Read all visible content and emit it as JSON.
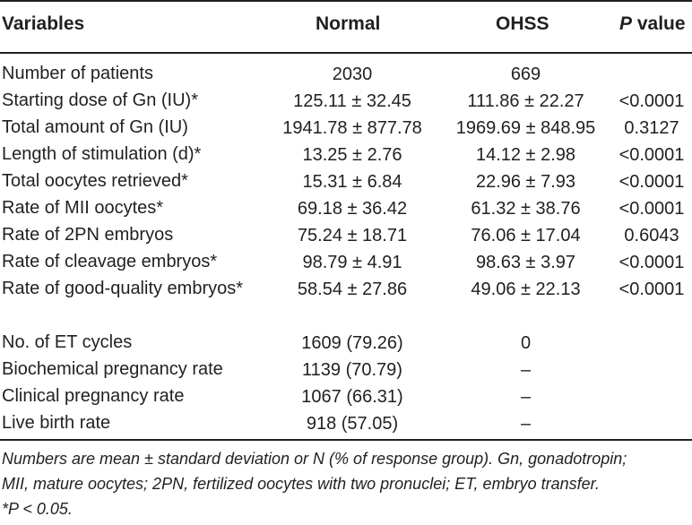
{
  "header": {
    "variables": "Variables",
    "normal": "Normal",
    "ohss": "OHSS",
    "p_italic": "P",
    "p_rest": " value"
  },
  "rows": [
    {
      "variable": "Number of patients",
      "normal": "2030",
      "ohss": "669",
      "p": ""
    },
    {
      "variable": "Starting dose of Gn (IU)*",
      "normal": "125.11 ± 32.45",
      "ohss": "111.86 ± 22.27",
      "p": "<0.0001"
    },
    {
      "variable": "Total amount of Gn (IU)",
      "normal": "1941.78 ± 877.78",
      "ohss": "1969.69 ± 848.95",
      "p": "0.3127"
    },
    {
      "variable": "Length of stimulation (d)*",
      "normal": "13.25 ± 2.76",
      "ohss": "14.12 ± 2.98",
      "p": "<0.0001"
    },
    {
      "variable": "Total oocytes retrieved*",
      "normal": "15.31 ± 6.84",
      "ohss": "22.96 ± 7.93",
      "p": "<0.0001"
    },
    {
      "variable": "Rate of MII oocytes*",
      "normal": "69.18 ± 36.42",
      "ohss": "61.32 ± 38.76",
      "p": "<0.0001"
    },
    {
      "variable": "Rate of 2PN embryos",
      "normal": "75.24 ± 18.71",
      "ohss": "76.06 ± 17.04",
      "p": "0.6043"
    },
    {
      "variable": "Rate of cleavage embryos*",
      "normal": "98.79 ± 4.91",
      "ohss": "98.63 ± 3.97",
      "p": "<0.0001"
    },
    {
      "variable": "Rate of good-quality embryos*",
      "normal": "58.54 ± 27.86",
      "ohss": "49.06 ± 22.13",
      "p": "<0.0001"
    },
    {
      "variable": "No. of ET cycles",
      "normal": "1609 (79.26)",
      "ohss": "0",
      "p": ""
    },
    {
      "variable": "Biochemical pregnancy rate",
      "normal": "1139 (70.79)",
      "ohss": "–",
      "p": ""
    },
    {
      "variable": "Clinical pregnancy rate",
      "normal": "1067 (66.31)",
      "ohss": "–",
      "p": ""
    },
    {
      "variable": "Live birth rate",
      "normal": "918 (57.05)",
      "ohss": "–",
      "p": ""
    }
  ],
  "footnote": {
    "line1": "Numbers are mean ± standard deviation or N (% of response group). Gn, gonadotropin;",
    "line2": "MII, mature oocytes; 2PN, fertilized oocytes with two pronuclei; ET, embryo transfer.",
    "line3": "*P < 0.05."
  }
}
